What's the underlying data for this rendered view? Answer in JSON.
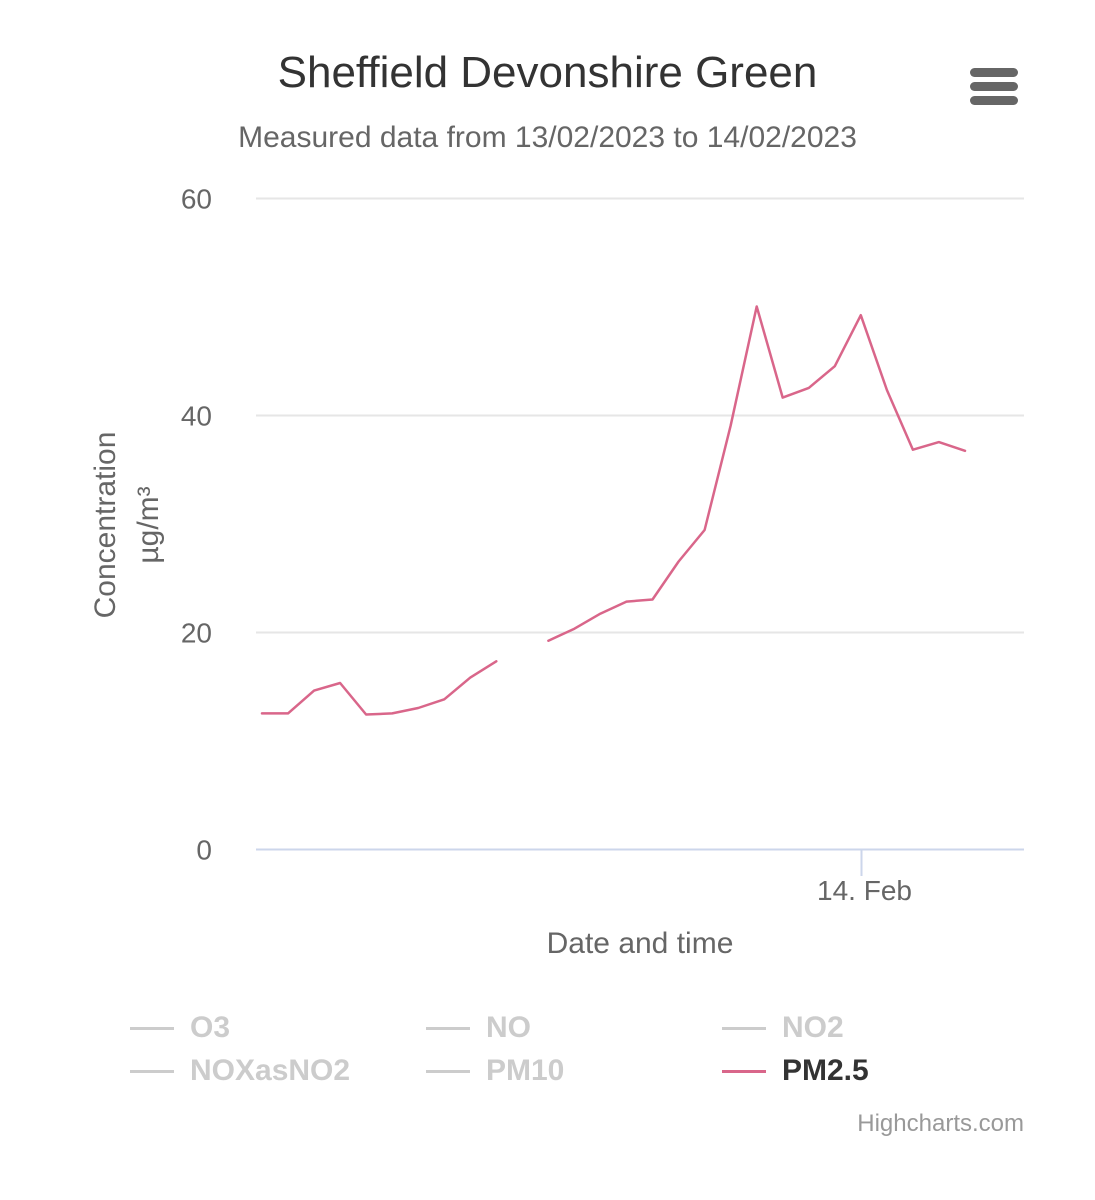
{
  "title": "Sheffield Devonshire Green",
  "subtitle": "Measured data from 13/02/2023 to 14/02/2023",
  "menu_icon": "hamburger-menu-icon",
  "credits": "Highcharts.com",
  "colors": {
    "pm25": "#d9668a",
    "grid": "#e6e6e6",
    "axis": "#ccd6eb",
    "legend_active": "#333333",
    "legend_inactive": "#cccccc"
  },
  "legend": [
    {
      "name": "O3",
      "active": false
    },
    {
      "name": "NO",
      "active": false
    },
    {
      "name": "NO2",
      "active": false
    },
    {
      "name": "NOXasNO2",
      "active": false
    },
    {
      "name": "PM10",
      "active": false
    },
    {
      "name": "PM2.5",
      "active": true
    }
  ],
  "chart_data": {
    "type": "line",
    "title": "Sheffield Devonshire Green",
    "subtitle": "Measured data from 13/02/2023 to 14/02/2023",
    "xlabel": "Date and time",
    "ylabel": "Concentration",
    "yunit": "µg/m³",
    "ylim": [
      0,
      60
    ],
    "yticks": [
      "0",
      "20",
      "40",
      "60"
    ],
    "xticks": [
      {
        "label": "14. Feb",
        "x": "2023-02-14 00:00"
      }
    ],
    "xlim": [
      "2023-02-13 01:00",
      "2023-02-14 05:00"
    ],
    "grid": true,
    "legend_position": "bottom",
    "series": [
      {
        "name": "PM2.5",
        "points": [
          {
            "x": "2023-02-13 01:00",
            "y": 12.5
          },
          {
            "x": "2023-02-13 02:00",
            "y": 12.5
          },
          {
            "x": "2023-02-13 03:00",
            "y": 14.6
          },
          {
            "x": "2023-02-13 04:00",
            "y": 15.3
          },
          {
            "x": "2023-02-13 05:00",
            "y": 12.4
          },
          {
            "x": "2023-02-13 06:00",
            "y": 12.5
          },
          {
            "x": "2023-02-13 07:00",
            "y": 13.0
          },
          {
            "x": "2023-02-13 08:00",
            "y": 13.8
          },
          {
            "x": "2023-02-13 09:00",
            "y": 15.8
          },
          {
            "x": "2023-02-13 10:00",
            "y": 17.3
          },
          {
            "x": "2023-02-13 11:00",
            "y": null
          },
          {
            "x": "2023-02-13 12:00",
            "y": 19.2
          },
          {
            "x": "2023-02-13 13:00",
            "y": 20.3
          },
          {
            "x": "2023-02-13 14:00",
            "y": 21.7
          },
          {
            "x": "2023-02-13 15:00",
            "y": 22.8
          },
          {
            "x": "2023-02-13 16:00",
            "y": 23.0
          },
          {
            "x": "2023-02-13 17:00",
            "y": 26.5
          },
          {
            "x": "2023-02-13 18:00",
            "y": 29.4
          },
          {
            "x": "2023-02-13 19:00",
            "y": 39.0
          },
          {
            "x": "2023-02-13 20:00",
            "y": 50.0
          },
          {
            "x": "2023-02-13 21:00",
            "y": 41.6
          },
          {
            "x": "2023-02-13 22:00",
            "y": 42.5
          },
          {
            "x": "2023-02-13 23:00",
            "y": 44.5
          },
          {
            "x": "2023-02-14 00:00",
            "y": 49.2
          },
          {
            "x": "2023-02-14 01:00",
            "y": 42.3
          },
          {
            "x": "2023-02-14 02:00",
            "y": 36.8
          },
          {
            "x": "2023-02-14 03:00",
            "y": 37.5
          },
          {
            "x": "2023-02-14 04:00",
            "y": 36.7
          }
        ]
      }
    ]
  }
}
